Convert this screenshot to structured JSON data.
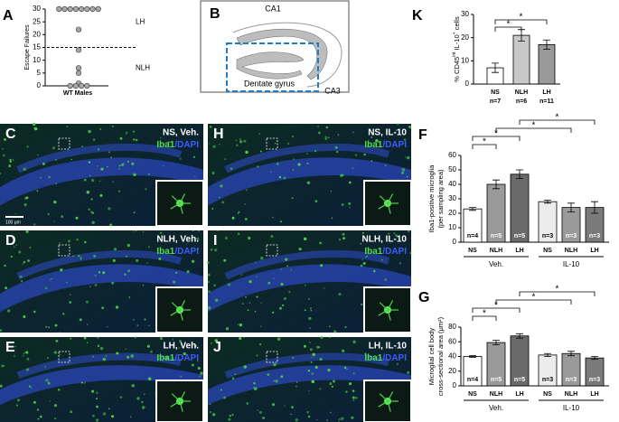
{
  "chart_data": [
    {
      "type": "dot",
      "panel": "A",
      "ylabel": "Escape Failures",
      "xlabel": "WT Males",
      "values": [
        30,
        30,
        30,
        30,
        30,
        30,
        30,
        30,
        22,
        14,
        7,
        5,
        1,
        0,
        0,
        0,
        0
      ],
      "threshold": 15,
      "annotations": [
        "LH",
        "NLH"
      ],
      "ylim": [
        0,
        30
      ],
      "yticks": [
        0,
        5,
        10,
        15,
        20,
        25,
        30
      ]
    },
    {
      "type": "bar",
      "panel": "K",
      "ylabel": [
        "% CD45",
        "int",
        " IL-10",
        "+",
        " cells"
      ],
      "ylim": [
        0,
        30
      ],
      "yticks": [
        0,
        10,
        20,
        30
      ],
      "groups": [
        {
          "categories": [
            "NS",
            "NLH",
            "LH"
          ],
          "values": [
            7,
            21,
            17
          ],
          "errors": [
            2,
            2.5,
            2
          ],
          "n_labels": [
            "n=7",
            "n=6",
            "n=11"
          ],
          "colors": [
            "#ffffff",
            "#c8c8c8",
            "#9a9a9a"
          ]
        }
      ],
      "significance": [
        {
          "from": [
            0,
            0
          ],
          "to": [
            0,
            1
          ],
          "label": "*"
        },
        {
          "from": [
            0,
            0
          ],
          "to": [
            0,
            2
          ],
          "label": "*"
        }
      ]
    },
    {
      "type": "bar",
      "panel": "F",
      "ylabel": [
        "Iba1-positive microglia",
        "(per sampling area)"
      ],
      "ylim": [
        0,
        60
      ],
      "yticks": [
        0,
        10,
        20,
        30,
        40,
        50,
        60
      ],
      "groups": [
        {
          "name": "Veh.",
          "categories": [
            "NS",
            "NLH",
            "LH"
          ],
          "values": [
            23,
            40,
            47
          ],
          "errors": [
            1,
            3,
            3
          ],
          "n_labels": [
            "n=4",
            "n=5",
            "n=5"
          ],
          "colors": [
            "#ffffff",
            "#9a9a9a",
            "#6a6a6a"
          ]
        },
        {
          "name": "IL-10",
          "categories": [
            "NS",
            "NLH",
            "LH"
          ],
          "values": [
            28,
            24,
            24
          ],
          "errors": [
            1,
            3,
            4
          ],
          "n_labels": [
            "n=3",
            "n=3",
            "n=3"
          ],
          "colors": [
            "#ececec",
            "#9a9a9a",
            "#7a7a7a"
          ]
        }
      ],
      "significance": [
        {
          "from": [
            0,
            0
          ],
          "to": [
            0,
            1
          ],
          "label": "*"
        },
        {
          "from": [
            0,
            0
          ],
          "to": [
            0,
            2
          ],
          "label": "*"
        },
        {
          "from": [
            0,
            1
          ],
          "to": [
            1,
            1
          ],
          "label": "*"
        },
        {
          "from": [
            0,
            2
          ],
          "to": [
            1,
            2
          ],
          "label": "*"
        }
      ]
    },
    {
      "type": "bar",
      "panel": "G",
      "ylabel": [
        "Microglial cell body",
        "cross-sectional area (μm²)"
      ],
      "ylim": [
        0,
        80
      ],
      "yticks": [
        0,
        20,
        40,
        60,
        80
      ],
      "groups": [
        {
          "name": "Veh.",
          "categories": [
            "NS",
            "NLH",
            "LH"
          ],
          "values": [
            40,
            59,
            68
          ],
          "errors": [
            1,
            3,
            3
          ],
          "n_labels": [
            "n=4",
            "n=5",
            "n=5"
          ],
          "colors": [
            "#ffffff",
            "#9a9a9a",
            "#6a6a6a"
          ]
        },
        {
          "name": "IL-10",
          "categories": [
            "NS",
            "NLH",
            "LH"
          ],
          "values": [
            42,
            44,
            38
          ],
          "errors": [
            2,
            3,
            2
          ],
          "n_labels": [
            "n=3",
            "n=3",
            "n=3"
          ],
          "colors": [
            "#ececec",
            "#9a9a9a",
            "#7a7a7a"
          ]
        }
      ],
      "significance": [
        {
          "from": [
            0,
            0
          ],
          "to": [
            0,
            1
          ],
          "label": "*"
        },
        {
          "from": [
            0,
            0
          ],
          "to": [
            0,
            2
          ],
          "label": "*"
        },
        {
          "from": [
            0,
            1
          ],
          "to": [
            1,
            1
          ],
          "label": "*"
        },
        {
          "from": [
            0,
            2
          ],
          "to": [
            1,
            2
          ],
          "label": "*"
        }
      ]
    }
  ],
  "diagram": {
    "panel": "B",
    "labels": [
      "CA1",
      "CA3",
      "Dentate gyrus"
    ]
  },
  "micrographs": [
    {
      "panel": "C",
      "title": "NS, Veh.",
      "green": "Iba1",
      "blue": "/DAPI",
      "scale_bar": "100 μm"
    },
    {
      "panel": "D",
      "title": "NLH, Veh.",
      "green": "Iba1",
      "blue": "/DAPI"
    },
    {
      "panel": "E",
      "title": "LH, Veh.",
      "green": "Iba1",
      "blue": "/DAPI"
    },
    {
      "panel": "H",
      "title": "NS, IL-10",
      "green": "Iba1",
      "blue": "/DAPI"
    },
    {
      "panel": "I",
      "title": "NLH, IL-10",
      "green": "Iba1",
      "blue": "/DAPI"
    },
    {
      "panel": "J",
      "title": "LH, IL-10",
      "green": "Iba1",
      "blue": "/DAPI"
    }
  ]
}
